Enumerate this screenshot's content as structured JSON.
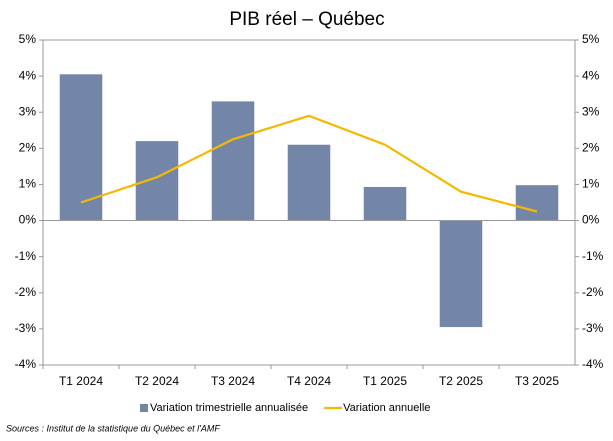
{
  "chart_data": {
    "type": "bar_line",
    "title": "PIB réel – Québec",
    "categories": [
      "T1 2024",
      "T2 2024",
      "T3 2024",
      "T4 2024",
      "T1 2025",
      "T2 2025",
      "T3 2025"
    ],
    "series": [
      {
        "name": "Variation trimestrielle annualisée",
        "type": "bar",
        "color": "#7486a8",
        "values": [
          4.05,
          2.2,
          3.3,
          2.1,
          0.93,
          -2.95,
          0.98
        ]
      },
      {
        "name": "Variation annuelle",
        "type": "line",
        "color": "#f5b800",
        "axis": "y2",
        "values": [
          0.5,
          1.2,
          2.25,
          2.9,
          2.1,
          0.8,
          0.25
        ]
      }
    ],
    "ylim": [
      -4,
      5
    ],
    "yticks": [
      {
        "value": -4,
        "label": "-4%"
      },
      {
        "value": -3,
        "label": "-3%"
      },
      {
        "value": -2,
        "label": "-2%"
      },
      {
        "value": -1,
        "label": "-1%"
      },
      {
        "value": 0,
        "label": "0%"
      },
      {
        "value": 1,
        "label": "1%"
      },
      {
        "value": 2,
        "label": "2%"
      },
      {
        "value": 3,
        "label": "3%"
      },
      {
        "value": 4,
        "label": "4%"
      },
      {
        "value": 5,
        "label": "5%"
      }
    ],
    "y2lim": [
      -4,
      5
    ],
    "y2ticks": [
      {
        "value": -4,
        "label": "-4%"
      },
      {
        "value": -3,
        "label": "-3%"
      },
      {
        "value": -2,
        "label": "-2%"
      },
      {
        "value": -1,
        "label": "-1%"
      },
      {
        "value": 0,
        "label": "0%"
      },
      {
        "value": 1,
        "label": "1%"
      },
      {
        "value": 2,
        "label": "2%"
      },
      {
        "value": 3,
        "label": "3%"
      },
      {
        "value": 4,
        "label": "4%"
      },
      {
        "value": 5,
        "label": "5%"
      }
    ],
    "source": "Sources : Institut de la statistique du Québec et l'AMF"
  }
}
